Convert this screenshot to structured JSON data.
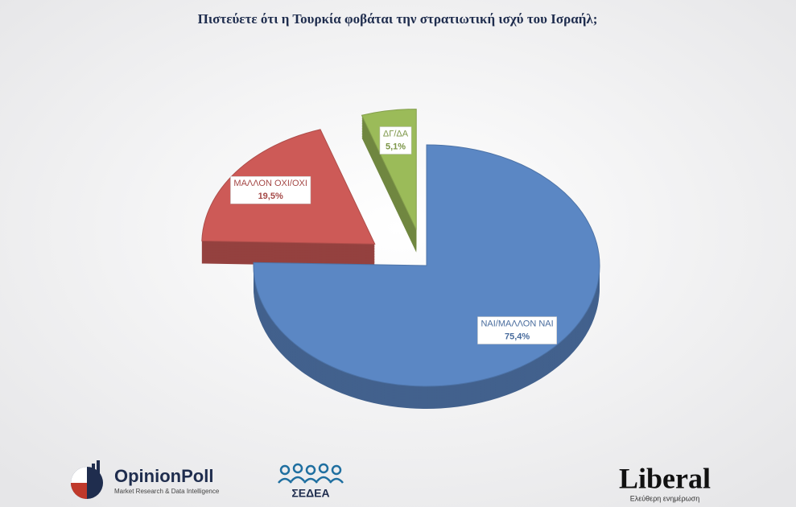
{
  "chart_data": {
    "type": "pie",
    "title": "Πιστεύετε ότι η Τουρκία φοβάται την στρατιωτική ισχύ του Ισραήλ;",
    "categories": [
      "ΝΑΙ/ΜΑΛΛΟΝ ΝΑΙ",
      "ΜΑΛΛΟΝ ΟΧΙ/ΟΧΙ",
      "ΔΓ/ΔΑ"
    ],
    "values": [
      75.4,
      19.5,
      5.1
    ],
    "value_labels": [
      "75,4%",
      "19,5%",
      "5,1%"
    ],
    "colors": [
      "#5b87c4",
      "#cd5a57",
      "#9bbb59"
    ]
  },
  "footer": {
    "opinionpoll": "OpinionPoll",
    "opinionpoll_tagline": "Market Research & Data Intelligence",
    "sedea": "ΣΕΔΕΑ",
    "liberal": "Liberal",
    "liberal_tagline": "Ελεύθερη ενημέρωση"
  }
}
